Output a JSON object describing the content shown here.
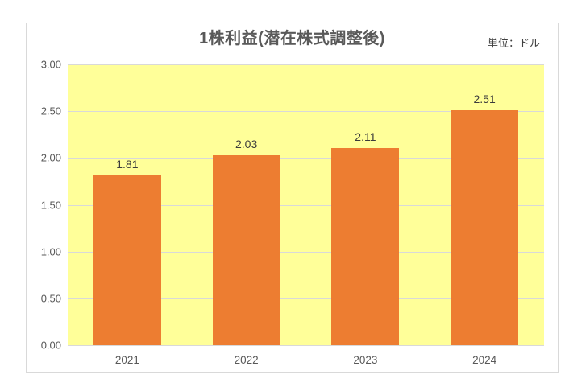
{
  "chart_data": {
    "type": "bar",
    "title": "1株利益(潜在株式調整後)",
    "unit_label": "単位：ドル",
    "categories": [
      "2021",
      "2022",
      "2023",
      "2024"
    ],
    "values": [
      1.81,
      2.03,
      2.11,
      2.51
    ],
    "value_labels": [
      "1.81",
      "2.03",
      "2.11",
      "2.51"
    ],
    "xlabel": "",
    "ylabel": "",
    "ylim": [
      0,
      3.0
    ],
    "ytick_step": 0.5,
    "ytick_labels": [
      "0.00",
      "0.50",
      "1.00",
      "1.50",
      "2.00",
      "2.50",
      "3.00"
    ],
    "grid": "horizontal",
    "legend": "none",
    "colors": {
      "bar": "#ED7D31",
      "plot_background": "#FFFF99",
      "gridline": "#D9D9D9",
      "frame_border": "#D9D9D9",
      "title_text": "#595959",
      "tick_text": "#595959",
      "data_label_text": "#3B3B3B"
    }
  }
}
